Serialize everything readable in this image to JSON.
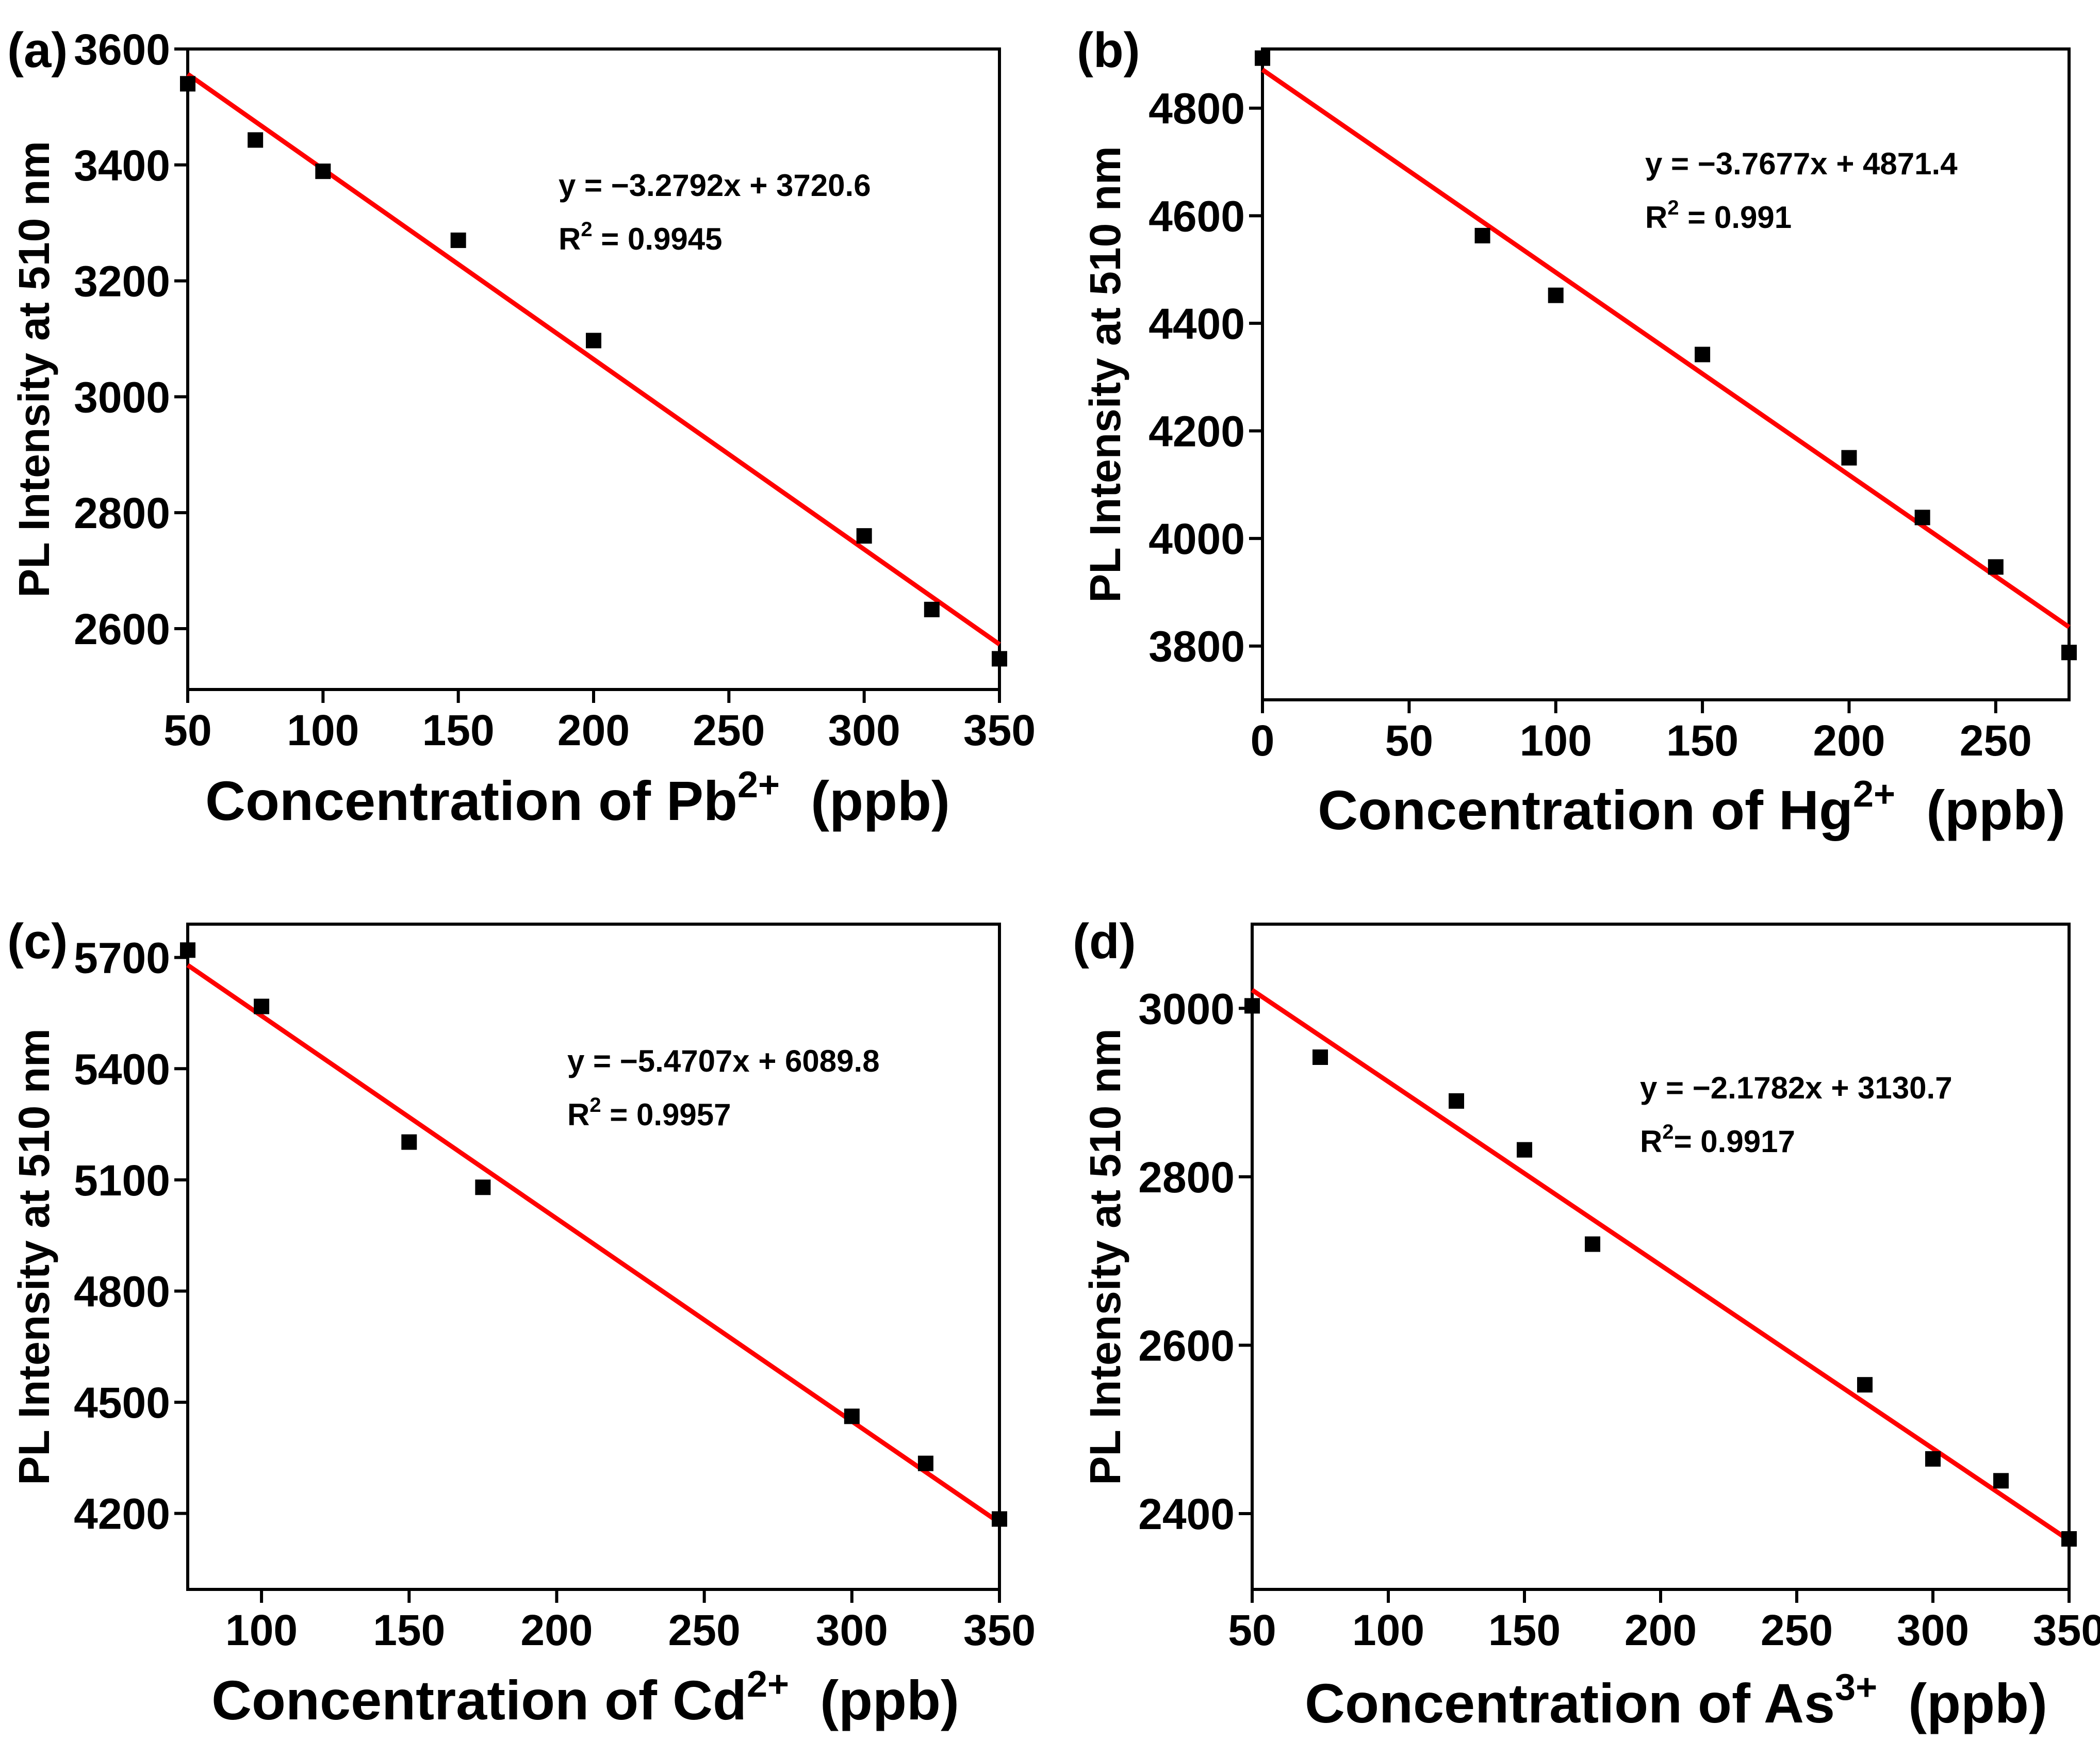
{
  "colors": {
    "fit_line": "#ff0000",
    "marker": "#000000",
    "axis": "#000000"
  },
  "chart_data": [
    {
      "type": "scatter",
      "panel_label": "(a)",
      "title": "",
      "xlabel_main": "Concentration of Pb",
      "xlabel_sup": "2+",
      "xlabel_unit": "(ppb)",
      "ylabel": "PL Intensity at 510 nm",
      "xlim": [
        50,
        350
      ],
      "ylim": [
        2495,
        3600
      ],
      "xticks": [
        50,
        100,
        150,
        200,
        250,
        300,
        350
      ],
      "yticks": [
        2600,
        2800,
        3000,
        3200,
        3400,
        3600
      ],
      "x": [
        50,
        75,
        100,
        150,
        200,
        300,
        325,
        350
      ],
      "y": [
        3540,
        3443,
        3389,
        3270,
        3097,
        2760,
        2633,
        2548
      ],
      "fit": {
        "slope": -3.2792,
        "intercept": 3720.6
      },
      "equation": "y = −3.2792x + 3720.6",
      "r2_prefix": "R",
      "r2_sup": "2",
      "r2_value": " = 0.9945"
    },
    {
      "type": "scatter",
      "panel_label": "(b)",
      "title": "",
      "xlabel_main": "Concentration of Hg",
      "xlabel_sup": "2+",
      "xlabel_unit": "(ppb)",
      "ylabel": "PL Intensity at 510 nm",
      "xlim": [
        0,
        275
      ],
      "ylim": [
        3700,
        4910
      ],
      "xticks": [
        0,
        50,
        100,
        150,
        200,
        250
      ],
      "yticks": [
        3800,
        4000,
        4200,
        4400,
        4600,
        4800
      ],
      "x": [
        0,
        75,
        100,
        150,
        200,
        225,
        250,
        275
      ],
      "y": [
        4893,
        4563,
        4452,
        4342,
        4150,
        4039,
        3947,
        3788
      ],
      "fit": {
        "slope": -3.7677,
        "intercept": 4871.4
      },
      "equation": "y = −3.7677x + 4871.4",
      "r2_prefix": "R",
      "r2_sup": "2",
      "r2_value": " = 0.991"
    },
    {
      "type": "scatter",
      "panel_label": "(c)",
      "title": "",
      "xlabel_main": "Concentration of Cd",
      "xlabel_sup": "2+",
      "xlabel_unit": "(ppb)",
      "ylabel": "PL Intensity at 510 nm",
      "xlim": [
        75,
        350
      ],
      "ylim": [
        3995,
        5790
      ],
      "xticks": [
        100,
        150,
        200,
        250,
        300,
        350
      ],
      "yticks": [
        4200,
        4500,
        4800,
        5100,
        5400,
        5700
      ],
      "x": [
        75,
        100,
        150,
        175,
        300,
        325,
        350
      ],
      "y": [
        5720,
        5568,
        5202,
        5080,
        4462,
        4335,
        4185
      ],
      "fit": {
        "slope": -5.4707,
        "intercept": 6089.8
      },
      "equation": "y = −5.4707x + 6089.8",
      "r2_prefix": "R",
      "r2_sup": "2",
      "r2_value": " = 0.9957"
    },
    {
      "type": "scatter",
      "panel_label": "(d)",
      "title": "",
      "xlabel_main": "Concentration of As",
      "xlabel_sup": "3+",
      "xlabel_unit": "(ppb)",
      "ylabel": "PL Intensity at 510 nm",
      "xlim": [
        50,
        350
      ],
      "ylim": [
        2310,
        3100
      ],
      "xticks": [
        50,
        100,
        150,
        200,
        250,
        300,
        350
      ],
      "yticks": [
        2400,
        2600,
        2800,
        3000
      ],
      "x": [
        50,
        75,
        125,
        150,
        175,
        275,
        300,
        325,
        350
      ],
      "y": [
        3003,
        2942,
        2890,
        2832,
        2720,
        2553,
        2465,
        2439,
        2370
      ],
      "fit": {
        "slope": -2.1782,
        "intercept": 3130.7
      },
      "equation": "y = −2.1782x + 3130.7",
      "r2_prefix": "R",
      "r2_sup": "2",
      "r2_value": "= 0.9917"
    }
  ]
}
